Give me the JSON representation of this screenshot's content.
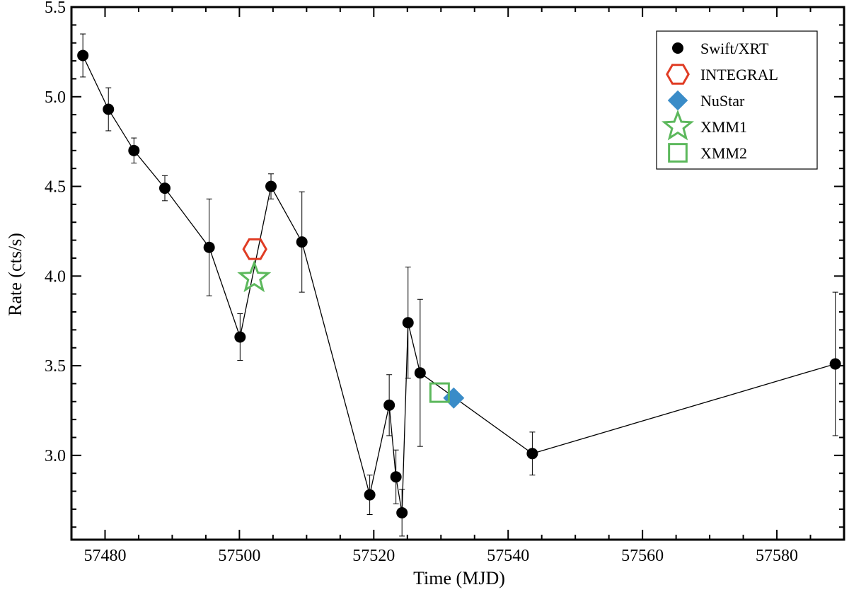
{
  "chart_data": {
    "type": "scatter",
    "title": "",
    "xlabel": "Time (MJD)",
    "ylabel": "Rate (cts/s)",
    "xlim": [
      57475,
      57590
    ],
    "ylim": [
      2.53,
      5.5
    ],
    "xticks": [
      57480,
      57500,
      57520,
      57540,
      57560,
      57580
    ],
    "yticks": [
      3.0,
      3.5,
      4.0,
      4.5,
      5.0,
      5.5
    ],
    "ytick_labels": [
      "3.0",
      "3.5",
      "4.0",
      "4.5",
      "5.0",
      "5.5"
    ],
    "grid": false,
    "legend_position": "top-right",
    "series": [
      {
        "name": "Swift/XRT",
        "marker": "circle",
        "color": "#000000",
        "connected": true,
        "points": [
          {
            "x": 57476.7,
            "y": 5.23,
            "err": 0.12
          },
          {
            "x": 57480.5,
            "y": 4.93,
            "err": 0.12
          },
          {
            "x": 57484.3,
            "y": 4.7,
            "err": 0.07
          },
          {
            "x": 57488.9,
            "y": 4.49,
            "err": 0.07
          },
          {
            "x": 57495.5,
            "y": 4.16,
            "err": 0.27
          },
          {
            "x": 57500.1,
            "y": 3.66,
            "err": 0.13
          },
          {
            "x": 57504.7,
            "y": 4.5,
            "err": 0.07
          },
          {
            "x": 57509.3,
            "y": 4.19,
            "err": 0.28
          },
          {
            "x": 57519.4,
            "y": 2.78,
            "err": 0.11
          },
          {
            "x": 57522.3,
            "y": 3.28,
            "err": 0.17
          },
          {
            "x": 57523.3,
            "y": 2.88,
            "err": 0.15
          },
          {
            "x": 57524.2,
            "y": 2.68,
            "err": 0.13
          },
          {
            "x": 57525.1,
            "y": 3.74,
            "err": 0.31
          },
          {
            "x": 57526.9,
            "y": 3.46,
            "err": 0.41
          },
          {
            "x": 57543.6,
            "y": 3.01,
            "err": 0.12
          },
          {
            "x": 57588.7,
            "y": 3.51,
            "err": 0.4
          }
        ]
      },
      {
        "name": "INTEGRAL",
        "marker": "hexagon",
        "color": "#e03c24",
        "points": [
          {
            "x": 57502.3,
            "y": 4.15
          }
        ]
      },
      {
        "name": "NuStar",
        "marker": "diamond",
        "color": "#3a8cc8",
        "points": [
          {
            "x": 57531.9,
            "y": 3.32
          }
        ]
      },
      {
        "name": "XMM1",
        "marker": "star",
        "color": "#5cb85c",
        "points": [
          {
            "x": 57502.2,
            "y": 3.99
          }
        ]
      },
      {
        "name": "XMM2",
        "marker": "square",
        "color": "#5cb85c",
        "points": [
          {
            "x": 57529.8,
            "y": 3.35
          }
        ]
      }
    ]
  }
}
